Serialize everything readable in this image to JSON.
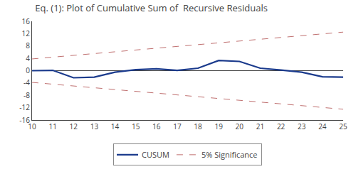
{
  "chart_data": {
    "type": "line",
    "title": "Eq. (1): Plot of Cumulative Sum of  Recursive Residuals",
    "x": [
      10,
      11,
      12,
      13,
      14,
      15,
      16,
      17,
      18,
      19,
      20,
      21,
      22,
      23,
      24,
      25
    ],
    "series": [
      {
        "name": "CUSUM",
        "color": "#1a3a8c",
        "values": [
          0.0,
          0.1,
          -2.3,
          -2.1,
          -0.5,
          0.3,
          0.6,
          0.1,
          0.8,
          3.3,
          3.0,
          0.8,
          0.2,
          -0.5,
          -2.0,
          -2.1
        ]
      }
    ],
    "bands": {
      "name": "5% Significance",
      "color": "#c07070",
      "line_style": "dashed",
      "x": [
        10,
        25
      ],
      "upper": [
        3.8,
        12.5
      ],
      "lower": [
        -3.8,
        -12.5
      ]
    },
    "xlim": [
      10,
      25
    ],
    "xticks": [
      10,
      11,
      12,
      13,
      14,
      15,
      16,
      17,
      18,
      19,
      20,
      21,
      22,
      23,
      24,
      25
    ],
    "ylim": [
      -16,
      16
    ],
    "yticks": [
      -16,
      -12,
      -8,
      -4,
      0,
      4,
      8,
      12,
      16
    ],
    "grid": false,
    "legend": "bottom"
  }
}
